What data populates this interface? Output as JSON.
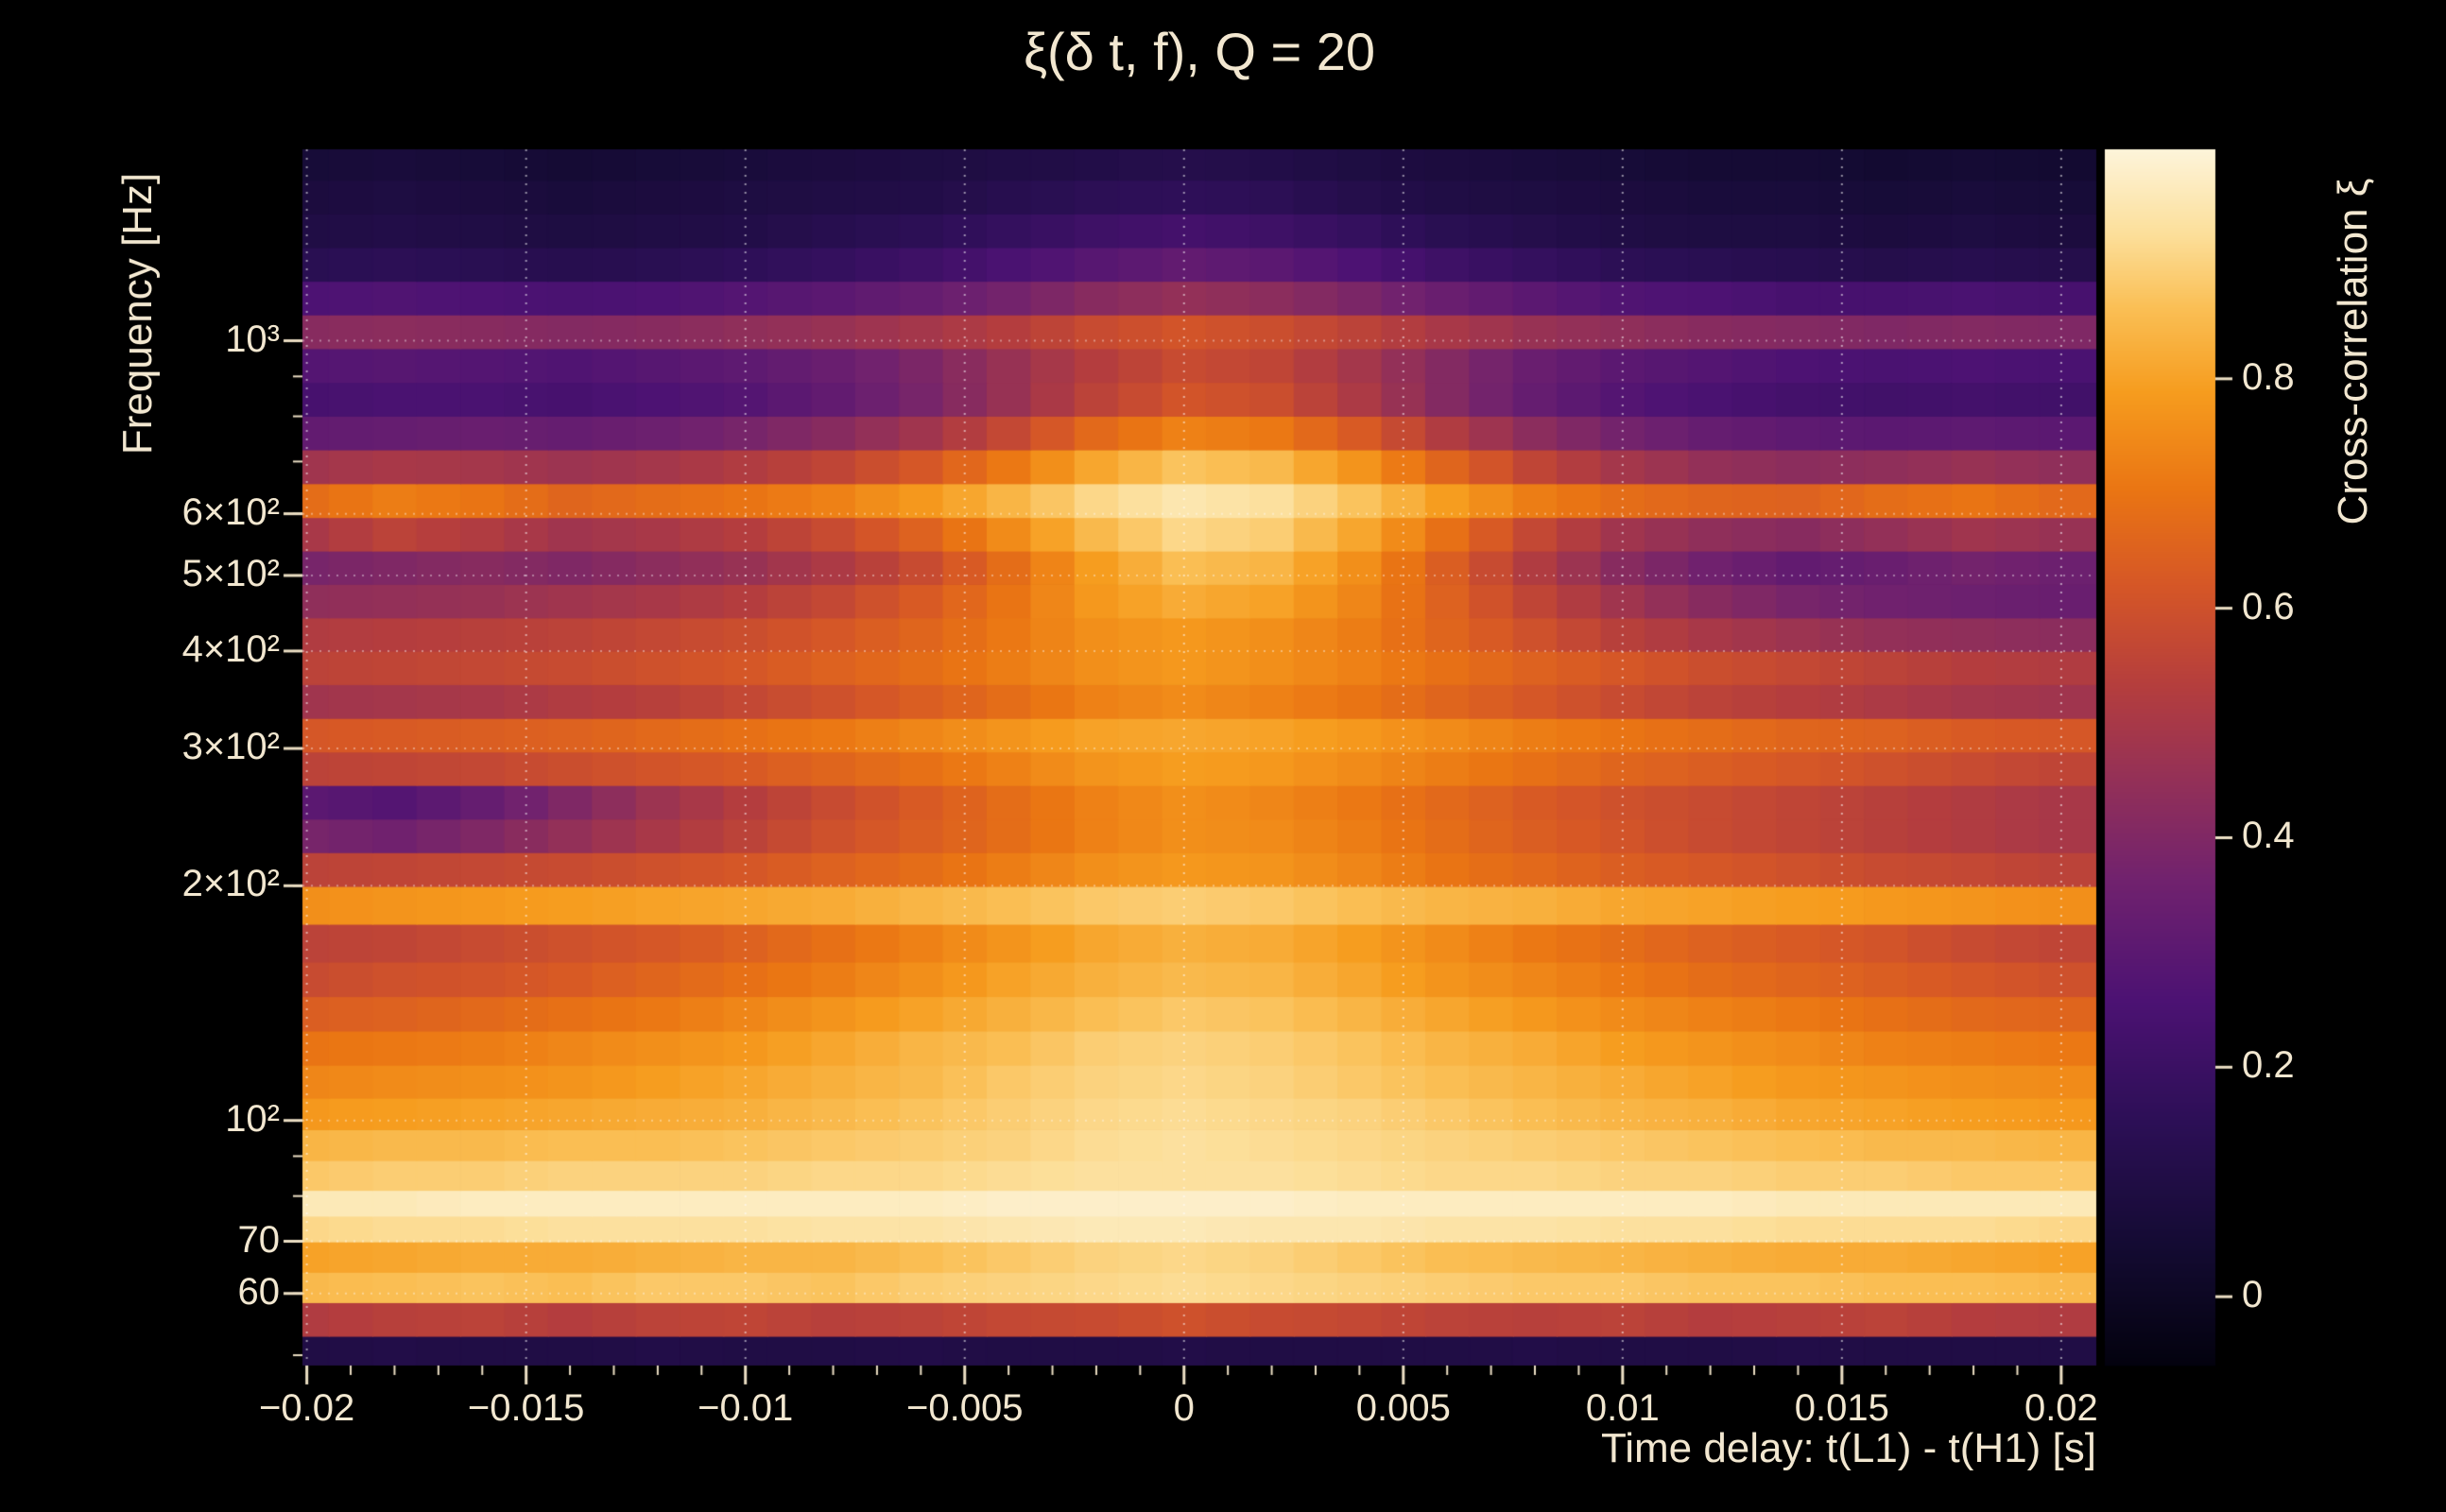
{
  "title": "ξ(δ t, f), Q = 20",
  "axes": {
    "x": {
      "label": "Time delay: t(L1) - t(H1) [s]",
      "range": [
        -0.0201,
        0.0208
      ],
      "minor_tick_step": 0.001,
      "ticks": [
        {
          "value": -0.02,
          "label": "−0.02"
        },
        {
          "value": -0.015,
          "label": "−0.015"
        },
        {
          "value": -0.01,
          "label": "−0.01"
        },
        {
          "value": -0.005,
          "label": "−0.005"
        },
        {
          "value": 0,
          "label": "0"
        },
        {
          "value": 0.005,
          "label": "0.005"
        },
        {
          "value": 0.01,
          "label": "0.01"
        },
        {
          "value": 0.015,
          "label": "0.015"
        },
        {
          "value": 0.02,
          "label": "0.02"
        }
      ]
    },
    "y": {
      "label": "Frequency [Hz]",
      "scale": "log",
      "range": [
        48.5,
        1760
      ],
      "ticks": [
        {
          "value": 1000,
          "label": "10³"
        },
        {
          "value": 600,
          "label": "6×10²"
        },
        {
          "value": 500,
          "label": "5×10²"
        },
        {
          "value": 400,
          "label": "4×10²"
        },
        {
          "value": 300,
          "label": "3×10²"
        },
        {
          "value": 200,
          "label": "2×10²"
        },
        {
          "value": 100,
          "label": "10²"
        },
        {
          "value": 70,
          "label": "70"
        },
        {
          "value": 60,
          "label": "60"
        }
      ],
      "minor_ticks": [
        50,
        60,
        70,
        80,
        90,
        200,
        300,
        400,
        500,
        600,
        700,
        800,
        900
      ]
    },
    "colorbar": {
      "label": "Cross-correlation ξ",
      "range": [
        -0.06,
        1.0
      ],
      "ticks": [
        {
          "value": 0.8,
          "label": "0.8"
        },
        {
          "value": 0.6,
          "label": "0.6"
        },
        {
          "value": 0.4,
          "label": "0.4"
        },
        {
          "value": 0.2,
          "label": "0.2"
        },
        {
          "value": 0,
          "label": "0"
        }
      ]
    }
  },
  "colors": {
    "background": "#000000",
    "text": "#f2e7d0",
    "tick": "#ecdfc4",
    "grid": "#ffffff"
  },
  "chart_data": {
    "type": "heatmap",
    "title": "ξ(δ t, f), Q = 20",
    "xlabel": "Time delay: t(L1) - t(H1) [s]",
    "ylabel": "Frequency [Hz]",
    "zlabel": "Cross-correlation ξ",
    "x_range": [
      -0.0201,
      0.0208
    ],
    "y_range": [
      48.5,
      1760
    ],
    "z_range": [
      -0.06,
      1.0
    ],
    "x": [
      -0.02,
      -0.018,
      -0.016,
      -0.014,
      -0.012,
      -0.01,
      -0.008,
      -0.006,
      -0.004,
      -0.002,
      0,
      0.002,
      0.004,
      0.006,
      0.008,
      0.01,
      0.012,
      0.014,
      0.016,
      0.018,
      0.02
    ],
    "y": [
      50,
      56,
      61,
      67,
      73,
      78,
      85,
      93,
      102,
      112,
      124,
      137,
      152,
      168,
      190,
      210,
      232,
      256,
      283,
      312,
      345,
      381,
      420,
      464,
      512,
      565,
      624,
      690,
      762,
      842,
      930,
      1028,
      1135,
      1254,
      1385,
      1530,
      1690
    ],
    "values": [
      [
        0.1,
        0.11,
        0.1,
        0.1,
        0.11,
        0.1,
        0.1,
        0.11,
        0.1,
        0.1,
        0.11,
        0.1,
        0.1,
        0.1,
        0.11,
        0.1,
        0.1,
        0.11,
        0.1,
        0.1,
        0.1
      ],
      [
        0.52,
        0.54,
        0.55,
        0.53,
        0.55,
        0.56,
        0.54,
        0.55,
        0.57,
        0.58,
        0.6,
        0.58,
        0.57,
        0.55,
        0.54,
        0.55,
        0.53,
        0.54,
        0.55,
        0.53,
        0.52
      ],
      [
        0.85,
        0.86,
        0.87,
        0.86,
        0.88,
        0.88,
        0.87,
        0.89,
        0.9,
        0.91,
        0.92,
        0.91,
        0.9,
        0.89,
        0.88,
        0.88,
        0.87,
        0.87,
        0.86,
        0.86,
        0.85
      ],
      [
        0.8,
        0.81,
        0.82,
        0.82,
        0.83,
        0.84,
        0.84,
        0.86,
        0.88,
        0.9,
        0.91,
        0.9,
        0.88,
        0.86,
        0.85,
        0.84,
        0.83,
        0.82,
        0.82,
        0.81,
        0.8
      ],
      [
        0.91,
        0.92,
        0.92,
        0.93,
        0.93,
        0.93,
        0.94,
        0.94,
        0.95,
        0.96,
        0.96,
        0.95,
        0.95,
        0.94,
        0.94,
        0.93,
        0.93,
        0.92,
        0.92,
        0.92,
        0.91
      ],
      [
        0.96,
        0.96,
        0.97,
        0.97,
        0.97,
        0.97,
        0.97,
        0.97,
        0.98,
        0.98,
        0.98,
        0.98,
        0.97,
        0.97,
        0.97,
        0.97,
        0.97,
        0.96,
        0.96,
        0.96,
        0.96
      ],
      [
        0.88,
        0.89,
        0.89,
        0.9,
        0.9,
        0.9,
        0.91,
        0.91,
        0.92,
        0.93,
        0.93,
        0.93,
        0.92,
        0.91,
        0.91,
        0.9,
        0.9,
        0.89,
        0.89,
        0.88,
        0.88
      ],
      [
        0.84,
        0.85,
        0.85,
        0.86,
        0.86,
        0.87,
        0.88,
        0.89,
        0.9,
        0.92,
        0.93,
        0.92,
        0.91,
        0.9,
        0.89,
        0.88,
        0.87,
        0.86,
        0.85,
        0.85,
        0.84
      ],
      [
        0.78,
        0.79,
        0.8,
        0.81,
        0.82,
        0.83,
        0.85,
        0.87,
        0.89,
        0.91,
        0.92,
        0.91,
        0.9,
        0.88,
        0.86,
        0.84,
        0.83,
        0.81,
        0.8,
        0.79,
        0.78
      ],
      [
        0.74,
        0.75,
        0.76,
        0.77,
        0.79,
        0.81,
        0.83,
        0.85,
        0.88,
        0.9,
        0.91,
        0.9,
        0.88,
        0.86,
        0.84,
        0.82,
        0.8,
        0.78,
        0.77,
        0.76,
        0.75
      ],
      [
        0.7,
        0.71,
        0.72,
        0.74,
        0.76,
        0.78,
        0.81,
        0.84,
        0.86,
        0.89,
        0.9,
        0.89,
        0.87,
        0.84,
        0.82,
        0.79,
        0.77,
        0.75,
        0.73,
        0.72,
        0.71
      ],
      [
        0.64,
        0.65,
        0.67,
        0.69,
        0.71,
        0.74,
        0.77,
        0.8,
        0.83,
        0.86,
        0.88,
        0.87,
        0.84,
        0.81,
        0.78,
        0.75,
        0.73,
        0.71,
        0.69,
        0.67,
        0.66
      ],
      [
        0.58,
        0.6,
        0.61,
        0.63,
        0.66,
        0.69,
        0.72,
        0.76,
        0.8,
        0.83,
        0.85,
        0.84,
        0.81,
        0.77,
        0.74,
        0.71,
        0.68,
        0.66,
        0.64,
        0.62,
        0.6
      ],
      [
        0.55,
        0.56,
        0.58,
        0.6,
        0.62,
        0.65,
        0.69,
        0.73,
        0.77,
        0.81,
        0.83,
        0.82,
        0.79,
        0.75,
        0.71,
        0.68,
        0.65,
        0.63,
        0.61,
        0.58,
        0.56
      ],
      [
        0.76,
        0.77,
        0.78,
        0.79,
        0.8,
        0.81,
        0.82,
        0.84,
        0.86,
        0.88,
        0.89,
        0.88,
        0.86,
        0.84,
        0.83,
        0.81,
        0.8,
        0.79,
        0.78,
        0.77,
        0.76
      ],
      [
        0.55,
        0.56,
        0.57,
        0.58,
        0.6,
        0.62,
        0.65,
        0.68,
        0.72,
        0.76,
        0.78,
        0.77,
        0.74,
        0.7,
        0.67,
        0.64,
        0.62,
        0.6,
        0.58,
        0.57,
        0.55
      ],
      [
        0.38,
        0.36,
        0.4,
        0.45,
        0.5,
        0.55,
        0.6,
        0.64,
        0.68,
        0.73,
        0.76,
        0.75,
        0.72,
        0.68,
        0.64,
        0.61,
        0.58,
        0.56,
        0.54,
        0.52,
        0.5
      ],
      [
        0.3,
        0.28,
        0.33,
        0.4,
        0.47,
        0.53,
        0.58,
        0.63,
        0.68,
        0.73,
        0.76,
        0.74,
        0.71,
        0.67,
        0.63,
        0.6,
        0.58,
        0.56,
        0.54,
        0.52,
        0.5
      ],
      [
        0.55,
        0.56,
        0.57,
        0.59,
        0.61,
        0.63,
        0.66,
        0.69,
        0.73,
        0.77,
        0.79,
        0.78,
        0.75,
        0.72,
        0.69,
        0.66,
        0.64,
        0.62,
        0.6,
        0.58,
        0.56
      ],
      [
        0.62,
        0.63,
        0.64,
        0.65,
        0.67,
        0.69,
        0.71,
        0.74,
        0.77,
        0.8,
        0.81,
        0.8,
        0.78,
        0.75,
        0.72,
        0.7,
        0.68,
        0.66,
        0.65,
        0.63,
        0.62
      ],
      [
        0.48,
        0.49,
        0.5,
        0.52,
        0.54,
        0.57,
        0.6,
        0.64,
        0.68,
        0.73,
        0.75,
        0.73,
        0.7,
        0.66,
        0.62,
        0.58,
        0.55,
        0.53,
        0.51,
        0.49,
        0.48
      ],
      [
        0.55,
        0.56,
        0.57,
        0.58,
        0.6,
        0.62,
        0.65,
        0.68,
        0.72,
        0.76,
        0.78,
        0.76,
        0.73,
        0.69,
        0.65,
        0.62,
        0.59,
        0.57,
        0.55,
        0.53,
        0.52
      ],
      [
        0.52,
        0.53,
        0.54,
        0.55,
        0.57,
        0.59,
        0.62,
        0.66,
        0.71,
        0.76,
        0.78,
        0.76,
        0.72,
        0.66,
        0.6,
        0.54,
        0.5,
        0.47,
        0.45,
        0.44,
        0.43
      ],
      [
        0.44,
        0.45,
        0.46,
        0.48,
        0.5,
        0.53,
        0.57,
        0.63,
        0.7,
        0.78,
        0.82,
        0.8,
        0.74,
        0.65,
        0.56,
        0.48,
        0.42,
        0.38,
        0.36,
        0.35,
        0.34
      ],
      [
        0.38,
        0.4,
        0.42,
        0.4,
        0.43,
        0.46,
        0.51,
        0.58,
        0.68,
        0.79,
        0.86,
        0.84,
        0.76,
        0.64,
        0.52,
        0.42,
        0.36,
        0.32,
        0.34,
        0.37,
        0.35
      ],
      [
        0.5,
        0.55,
        0.52,
        0.48,
        0.5,
        0.53,
        0.58,
        0.65,
        0.75,
        0.85,
        0.91,
        0.89,
        0.81,
        0.69,
        0.57,
        0.48,
        0.44,
        0.42,
        0.45,
        0.48,
        0.46
      ],
      [
        0.68,
        0.72,
        0.7,
        0.66,
        0.68,
        0.7,
        0.73,
        0.78,
        0.84,
        0.91,
        0.95,
        0.93,
        0.87,
        0.79,
        0.72,
        0.68,
        0.66,
        0.65,
        0.68,
        0.7,
        0.67
      ],
      [
        0.48,
        0.5,
        0.49,
        0.47,
        0.49,
        0.52,
        0.56,
        0.62,
        0.71,
        0.81,
        0.87,
        0.85,
        0.77,
        0.66,
        0.56,
        0.49,
        0.45,
        0.43,
        0.44,
        0.46,
        0.44
      ],
      [
        0.32,
        0.33,
        0.34,
        0.33,
        0.35,
        0.38,
        0.42,
        0.48,
        0.57,
        0.67,
        0.73,
        0.71,
        0.63,
        0.52,
        0.43,
        0.37,
        0.33,
        0.31,
        0.3,
        0.31,
        0.3
      ],
      [
        0.24,
        0.25,
        0.25,
        0.24,
        0.26,
        0.28,
        0.32,
        0.38,
        0.46,
        0.55,
        0.61,
        0.59,
        0.51,
        0.41,
        0.33,
        0.28,
        0.25,
        0.23,
        0.22,
        0.23,
        0.22
      ],
      [
        0.28,
        0.29,
        0.28,
        0.27,
        0.29,
        0.31,
        0.34,
        0.39,
        0.46,
        0.53,
        0.58,
        0.56,
        0.49,
        0.41,
        0.34,
        0.3,
        0.28,
        0.26,
        0.25,
        0.26,
        0.25
      ],
      [
        0.42,
        0.43,
        0.42,
        0.41,
        0.42,
        0.44,
        0.46,
        0.49,
        0.53,
        0.58,
        0.61,
        0.59,
        0.55,
        0.5,
        0.46,
        0.44,
        0.42,
        0.41,
        0.4,
        0.41,
        0.4
      ],
      [
        0.26,
        0.27,
        0.26,
        0.25,
        0.26,
        0.28,
        0.3,
        0.33,
        0.37,
        0.42,
        0.45,
        0.43,
        0.39,
        0.34,
        0.3,
        0.27,
        0.26,
        0.24,
        0.24,
        0.25,
        0.24
      ],
      [
        0.14,
        0.15,
        0.14,
        0.13,
        0.14,
        0.16,
        0.18,
        0.21,
        0.25,
        0.29,
        0.32,
        0.3,
        0.26,
        0.21,
        0.18,
        0.15,
        0.14,
        0.13,
        0.12,
        0.13,
        0.12
      ],
      [
        0.1,
        0.11,
        0.1,
        0.09,
        0.1,
        0.11,
        0.13,
        0.15,
        0.18,
        0.21,
        0.23,
        0.21,
        0.18,
        0.14,
        0.12,
        0.1,
        0.09,
        0.09,
        0.08,
        0.09,
        0.08
      ],
      [
        0.08,
        0.09,
        0.08,
        0.07,
        0.08,
        0.09,
        0.1,
        0.11,
        0.13,
        0.15,
        0.16,
        0.15,
        0.12,
        0.1,
        0.09,
        0.08,
        0.07,
        0.07,
        0.06,
        0.07,
        0.06
      ],
      [
        0.06,
        0.07,
        0.06,
        0.05,
        0.06,
        0.07,
        0.08,
        0.09,
        0.1,
        0.11,
        0.12,
        0.11,
        0.09,
        0.08,
        0.07,
        0.06,
        0.05,
        0.05,
        0.04,
        0.05,
        0.04
      ]
    ],
    "colormap": {
      "name": "inferno-like",
      "stops": [
        {
          "t": 0,
          "color": "#03020e"
        },
        {
          "t": 0.1,
          "color": "#140b33"
        },
        {
          "t": 0.2,
          "color": "#2c0f56"
        },
        {
          "t": 0.3,
          "color": "#4c1273"
        },
        {
          "t": 0.4,
          "color": "#71226e"
        },
        {
          "t": 0.48,
          "color": "#933058"
        },
        {
          "t": 0.56,
          "color": "#b53e3d"
        },
        {
          "t": 0.64,
          "color": "#d55627"
        },
        {
          "t": 0.72,
          "color": "#ea7513"
        },
        {
          "t": 0.8,
          "color": "#f69c1e"
        },
        {
          "t": 0.87,
          "color": "#fabf55"
        },
        {
          "t": 0.93,
          "color": "#fcdf9a"
        },
        {
          "t": 1,
          "color": "#fdf4da"
        }
      ]
    }
  }
}
